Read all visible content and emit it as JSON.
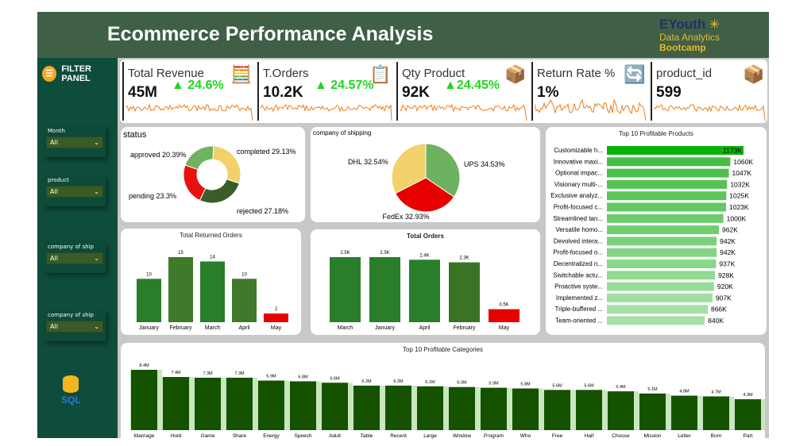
{
  "header": {
    "title": "Ecommerce Performance Analysis",
    "logo": {
      "brand": "EYouth",
      "line1": "Data Analytics",
      "line2": "Bootcamp"
    }
  },
  "filter_panel": {
    "title": "FILTER PANEL",
    "slicers": [
      {
        "label": "Month",
        "value": "All"
      },
      {
        "label": "product",
        "value": "All"
      },
      {
        "label": "company of ship",
        "value": "All"
      },
      {
        "label": "company of ship",
        "value": "All"
      }
    ],
    "sql_label": "SQL"
  },
  "kpis": [
    {
      "title": "Total Revenue",
      "value": "45M",
      "delta": "▲ 24.6%",
      "icon": "cash-register-icon"
    },
    {
      "title": "T.Orders",
      "value": "10.2K",
      "delta": "▲ 24.57%",
      "icon": "clipboard-icon"
    },
    {
      "title": "Qty Product",
      "value": "92K",
      "delta": "▲24.45%",
      "icon": "boxes-icon"
    },
    {
      "title": "Return Rate %",
      "value": "1%",
      "delta": "",
      "icon": "return-box-icon"
    },
    {
      "title": "product_id",
      "value": "599",
      "delta": "",
      "icon": "pallet-icon"
    }
  ],
  "colors": {
    "header": "#3f5f47",
    "panel": "#0e4d3c",
    "sparkline": "#f07d1a",
    "delta": "#1fd61f",
    "bar_green": "#2a7e2a",
    "bar_red": "#e60000",
    "cat_bar": "#155200"
  },
  "chart_data": [
    {
      "type": "pie",
      "title": "status",
      "donut": true,
      "slices": [
        {
          "label": "completed 29.13%",
          "value": 29.13,
          "color": "#f2d16b"
        },
        {
          "label": "rejected 27.18%",
          "value": 27.18,
          "color": "#375e27"
        },
        {
          "label": "pending 23.3%",
          "value": 23.3,
          "color": "#e81010"
        },
        {
          "label": "approved 20.39%",
          "value": 20.39,
          "color": "#6db35f"
        }
      ]
    },
    {
      "type": "pie",
      "title": "company of shipping",
      "slices": [
        {
          "label": "UPS 34.53%",
          "value": 34.53,
          "color": "#6db35f"
        },
        {
          "label": "FedEx 32.93%",
          "value": 32.93,
          "color": "#e80000"
        },
        {
          "label": "DHL 32.54%",
          "value": 32.54,
          "color": "#f2d16b"
        }
      ]
    },
    {
      "type": "bar",
      "orientation": "horizontal",
      "title": "Top 10 Profitable Products",
      "categories": [
        "Customizable h...",
        "Innovative maxi...",
        "Optional impac...",
        "Visionary multi-...",
        "Exclusive analyz...",
        "Profit-focused c...",
        "Streamlined tan...",
        "Versatile homo...",
        "Devolved intera...",
        "Profit-focused o...",
        "Decentralized n...",
        "Switchable actu...",
        "Proactive syste...",
        "Implemented z...",
        "Triple-buffered ...",
        "Team-oriented ..."
      ],
      "values": [
        1173,
        1060,
        1047,
        1032,
        1025,
        1023,
        1000,
        962,
        942,
        942,
        937,
        928,
        920,
        907,
        866,
        840
      ],
      "labels": [
        "1173K",
        "1060K",
        "1047K",
        "1032K",
        "1025K",
        "1023K",
        "1000K",
        "962K",
        "942K",
        "942K",
        "937K",
        "928K",
        "920K",
        "907K",
        "866K",
        "840K"
      ]
    },
    {
      "type": "bar",
      "title": "Total Returned Orders",
      "categories": [
        "January",
        "February",
        "March",
        "April",
        "May"
      ],
      "values": [
        10,
        15,
        14,
        10,
        2
      ],
      "labels": [
        "10",
        "15",
        "14",
        "10",
        "2"
      ]
    },
    {
      "type": "bar",
      "title": "Total Orders",
      "categories": [
        "March",
        "January",
        "April",
        "February",
        "May"
      ],
      "values": [
        2.5,
        2.5,
        2.4,
        2.3,
        0.5
      ],
      "labels": [
        "2.5K",
        "2.5K",
        "2.4K",
        "2.3K",
        "0.5K"
      ]
    },
    {
      "type": "bar",
      "title": "Top 10 Profitable Categories",
      "categories": [
        "Marriage",
        "Hold",
        "Game",
        "Share",
        "Energy",
        "Speech",
        "Adult",
        "Table",
        "Recent",
        "Large",
        "Window",
        "Program",
        "Who",
        "Free",
        "Half",
        "Choose",
        "Mission",
        "Letter",
        "Born",
        "Part"
      ],
      "values": [
        8.4,
        7.4,
        7.3,
        7.3,
        6.9,
        6.8,
        6.6,
        6.2,
        6.2,
        6.1,
        6.0,
        5.9,
        5.8,
        5.6,
        5.6,
        5.4,
        5.1,
        4.8,
        4.7,
        4.3
      ],
      "labels": [
        "8.4M",
        "7.4M",
        "7.3M",
        "7.3M",
        "6.9M",
        "6.8M",
        "6.6M",
        "6.2M",
        "6.2M",
        "6.1M",
        "6.0M",
        "5.9M",
        "5.8M",
        "5.6M",
        "5.6M",
        "5.4M",
        "5.1M",
        "4.8M",
        "4.7M",
        "4.3M"
      ]
    }
  ]
}
